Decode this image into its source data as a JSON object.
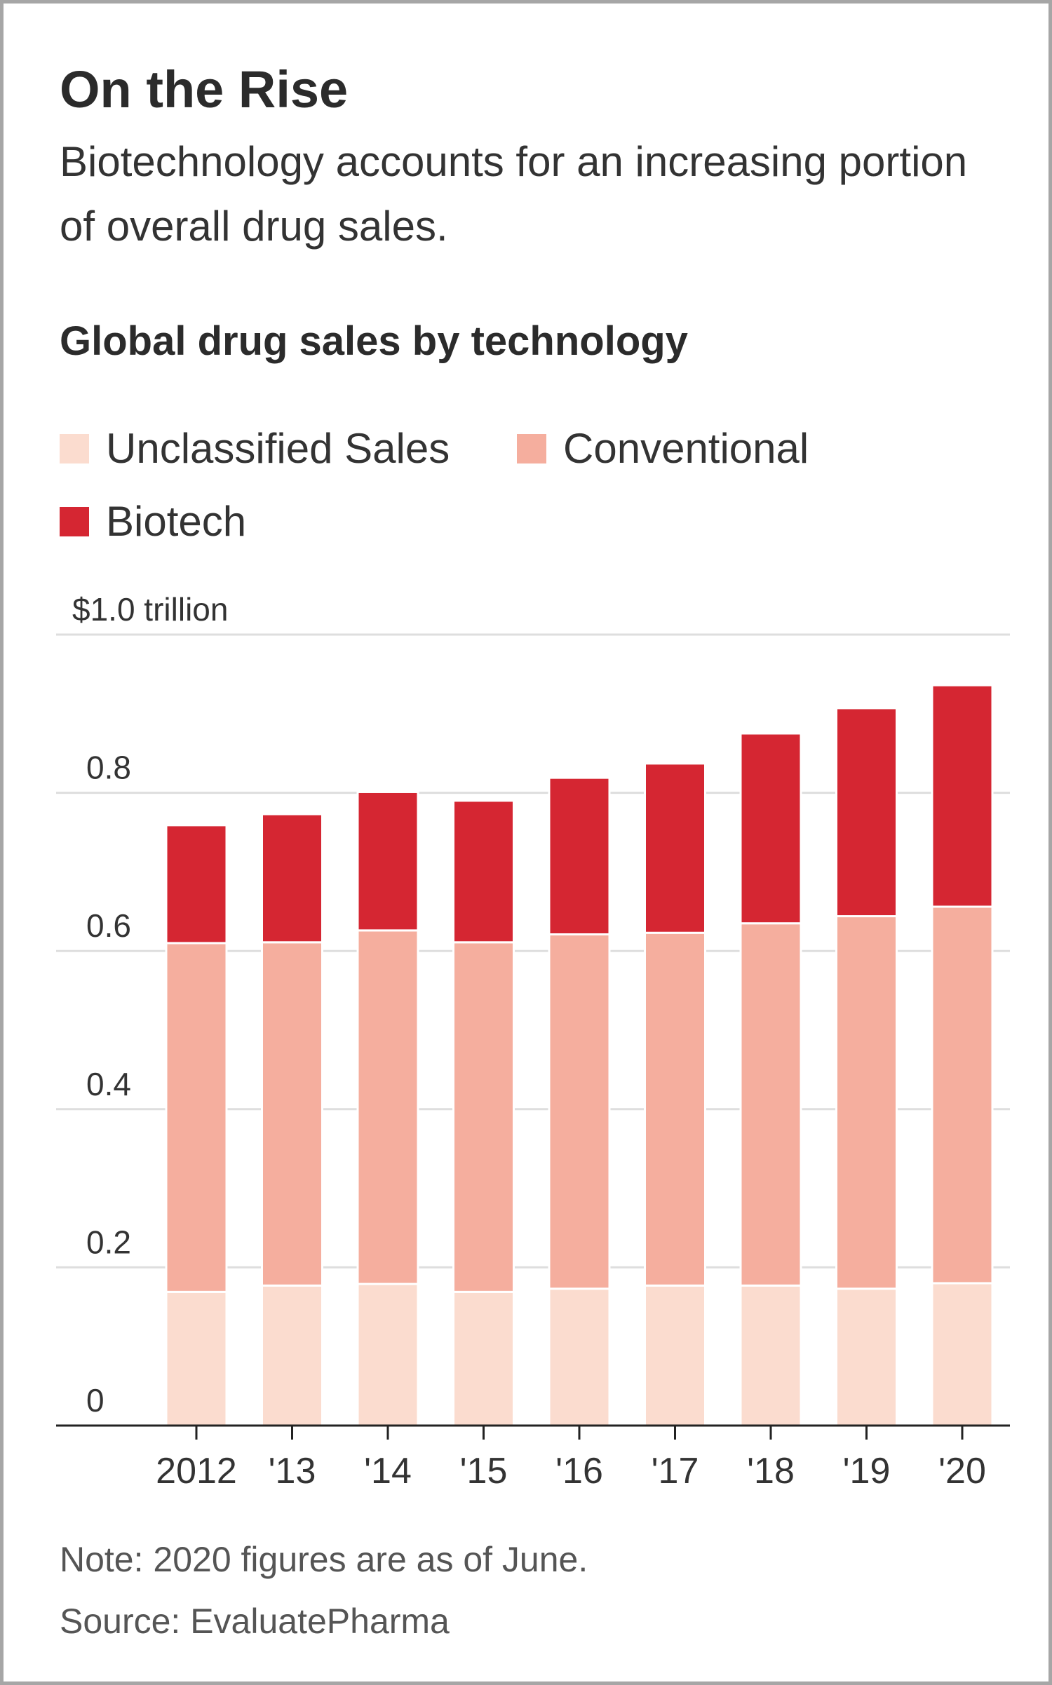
{
  "header": {
    "title": "On the Rise",
    "subtitle": "Biotechnology accounts for an increasing portion of overall drug sales."
  },
  "chart_heading": "Global drug sales by technology",
  "legend": [
    {
      "label": "Unclassified Sales",
      "color": "#fbdccf"
    },
    {
      "label": "Conventional",
      "color": "#f5ae9e"
    },
    {
      "label": "Biotech",
      "color": "#d52632"
    }
  ],
  "chart_data": {
    "type": "bar",
    "stacked": true,
    "categories": [
      "2012",
      "'13",
      "'14",
      "'15",
      "'16",
      "'17",
      "'18",
      "'19",
      "'20"
    ],
    "series": [
      {
        "name": "Unclassified Sales",
        "color": "#fbdccf",
        "values": [
          0.169,
          0.177,
          0.179,
          0.169,
          0.173,
          0.177,
          0.177,
          0.173,
          0.18
        ]
      },
      {
        "name": "Conventional",
        "color": "#f5ae9e",
        "values": [
          0.441,
          0.434,
          0.447,
          0.442,
          0.448,
          0.446,
          0.458,
          0.471,
          0.476
        ]
      },
      {
        "name": "Biotech",
        "color": "#d52632",
        "values": [
          0.149,
          0.162,
          0.175,
          0.179,
          0.198,
          0.214,
          0.24,
          0.263,
          0.28
        ]
      }
    ],
    "yticks": [
      {
        "value": 0,
        "label": "0"
      },
      {
        "value": 0.2,
        "label": "0.2"
      },
      {
        "value": 0.4,
        "label": "0.4"
      },
      {
        "value": 0.6,
        "label": "0.6"
      },
      {
        "value": 0.8,
        "label": "0.8"
      },
      {
        "value": 1.0,
        "label": "$1.0 trillion"
      }
    ],
    "ylim": [
      0,
      1.0
    ],
    "grid": true,
    "legend_position": "top-left"
  },
  "footer": {
    "note": "Note: 2020 figures are as of June.",
    "source": "Source: EvaluatePharma"
  }
}
